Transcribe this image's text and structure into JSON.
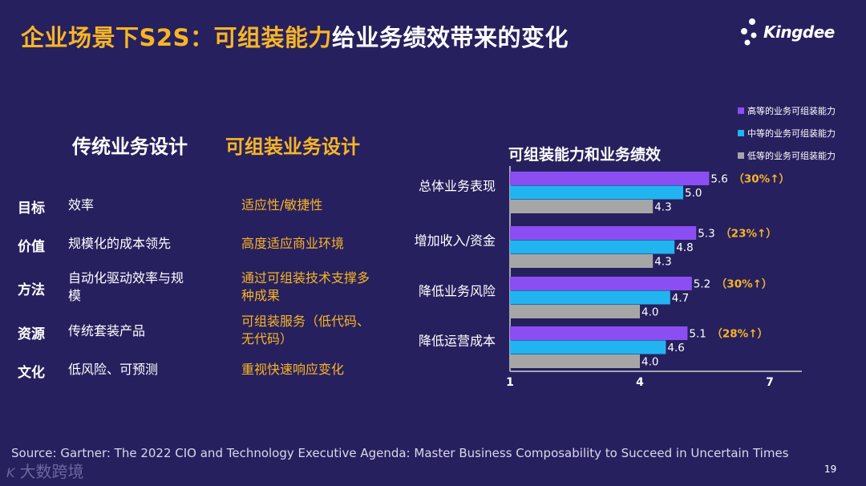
{
  "title": {
    "highlight": "企业场景下S2S：可组装能力",
    "rest": "给业务绩效带来的变化"
  },
  "logo": {
    "text": "Kingdee"
  },
  "comparison": {
    "traditional_header": "传统业务设计",
    "composable_header": "可组装业务设计",
    "rows": [
      {
        "label": "目标",
        "traditional": "效率",
        "composable": "适应性/敏捷性"
      },
      {
        "label": "价值",
        "traditional": "规模化的成本领先",
        "composable": "高度适应商业环境"
      },
      {
        "label": "方法",
        "traditional": "自动化驱动效率与规模",
        "composable": "通过可组装技术支撑多种成果"
      },
      {
        "label": "资源",
        "traditional": "传统套装产品",
        "composable": "可组装服务（低代码、无代码）"
      },
      {
        "label": "文化",
        "traditional": "低风险、可预测",
        "composable": "重视快速响应变化"
      }
    ]
  },
  "chart_data": {
    "type": "bar",
    "orientation": "horizontal",
    "title": "可组装能力和业务绩效",
    "categories": [
      "总体业务表现",
      "增加收入/资金",
      "降低业务风险",
      "降低运营成本"
    ],
    "series": [
      {
        "name": "高等的业务可组装能力",
        "color": "#8b4ef2",
        "values": [
          5.6,
          5.3,
          5.2,
          5.1
        ]
      },
      {
        "name": "中等的业务可组装能力",
        "color": "#22b4f0",
        "values": [
          5.0,
          4.8,
          4.7,
          4.6
        ]
      },
      {
        "name": "低等的业务可组装能力",
        "color": "#a6a6a6",
        "values": [
          4.3,
          4.3,
          4.0,
          4.0
        ]
      }
    ],
    "value_labels": [
      [
        "5.6",
        "5.0",
        "4.3"
      ],
      [
        "5.3",
        "4.8",
        "4.3"
      ],
      [
        "5.2",
        "4.7",
        "4.0"
      ],
      [
        "5.1",
        "4.6",
        "4.0"
      ]
    ],
    "annotations": [
      "30%↑",
      "23%↑",
      "30%↑",
      "28%↑"
    ],
    "xlim": [
      1,
      7
    ],
    "x_ticks": [
      "1",
      "4",
      "7"
    ],
    "grid": false,
    "legend_position": "top-right"
  },
  "source": "Source: Gartner: The 2022 CIO and Technology Executive Agenda: Master Business Composability to Succeed in Uncertain Times",
  "page_number": "19",
  "watermark": {
    "mark": "K",
    "text": "大数跨境"
  }
}
